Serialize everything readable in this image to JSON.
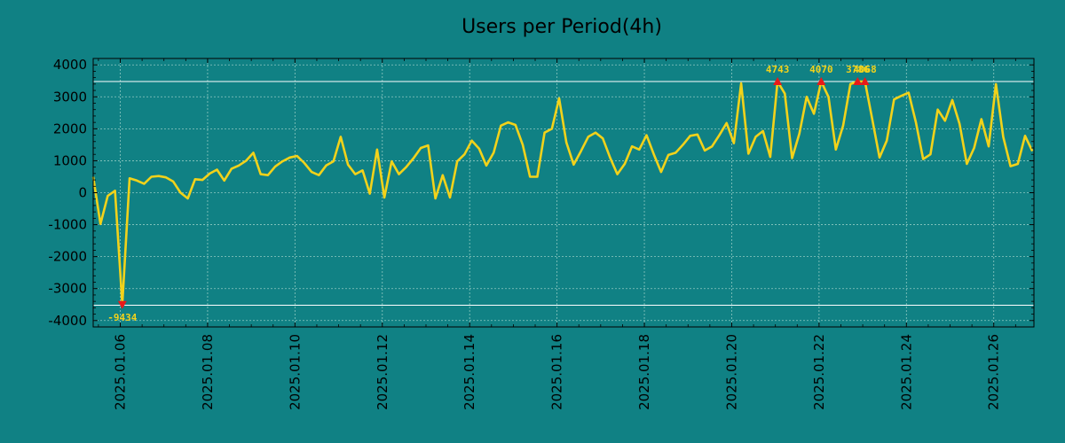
{
  "chart_data": {
    "type": "line",
    "title": "Users per Period(4h)",
    "xlabel": "",
    "ylabel": "",
    "ylim": [
      -4200,
      4200
    ],
    "xlim_days": [
      -0.62,
      20.92
    ],
    "grid": true,
    "x_tick_labels": [
      "2025.01.06",
      "2025.01.08",
      "2025.01.10",
      "2025.01.12",
      "2025.01.14",
      "2025.01.16",
      "2025.01.18",
      "2025.01.20",
      "2025.01.22",
      "2025.01.24",
      "2025.01.26"
    ],
    "y_ticks": [
      4000,
      3000,
      2000,
      1000,
      0,
      -1000,
      -2000,
      -3000,
      -4000
    ],
    "y_tick_labels": [
      "4000",
      "3000",
      "2000",
      "1000",
      "0",
      "-1000",
      "-2000",
      "-3000",
      "-4000"
    ],
    "reference_lines": [
      3480,
      -3520
    ],
    "series": [
      {
        "name": "Users",
        "start_day": -0.62,
        "step_days": 0.1667,
        "values": [
          500,
          -980,
          -100,
          60,
          -3500,
          450,
          380,
          280,
          500,
          520,
          480,
          350,
          0,
          -180,
          420,
          400,
          600,
          720,
          380,
          750,
          850,
          1000,
          1250,
          580,
          550,
          820,
          980,
          1100,
          1150,
          930,
          650,
          550,
          850,
          980,
          1750,
          880,
          580,
          700,
          -30,
          1350,
          -150,
          980,
          580,
          800,
          1080,
          1400,
          1480,
          -180,
          550,
          -150,
          980,
          1200,
          1630,
          1380,
          850,
          1250,
          2100,
          2200,
          2120,
          1500,
          500,
          500,
          1880,
          2000,
          2950,
          1570,
          880,
          1300,
          1750,
          1880,
          1700,
          1100,
          580,
          900,
          1450,
          1350,
          1800,
          1200,
          650,
          1180,
          1250,
          1500,
          1780,
          1820,
          1320,
          1450,
          1800,
          2180,
          1550,
          3420,
          1220,
          1750,
          1930,
          1120,
          3480,
          3100,
          1080,
          1850,
          3000,
          2470,
          3480,
          3000,
          1350,
          2100,
          3400,
          3480,
          3480,
          2300,
          1100,
          1630,
          2920,
          3030,
          3130,
          2200,
          1050,
          1200,
          2600,
          2250,
          2900,
          2150,
          900,
          1400,
          2300,
          1450,
          3400,
          1750,
          830,
          900,
          1780,
          1300
        ]
      }
    ],
    "annotations": [
      {
        "index": 4,
        "label": "-9434",
        "direction": "down"
      },
      {
        "index": 94,
        "label": "4743",
        "direction": "up"
      },
      {
        "index": 100,
        "label": "4070",
        "direction": "up"
      },
      {
        "index": 105,
        "label": "3786",
        "direction": "up"
      },
      {
        "index": 106,
        "label": "4068",
        "direction": "up"
      }
    ],
    "colors": {
      "background": "#108184",
      "line": "#f2d21a",
      "grid": "#8fc9c2",
      "reference": "#ffffff",
      "marker": "#e81a1a",
      "label": "#f2d21a",
      "axes": "#000000"
    }
  }
}
